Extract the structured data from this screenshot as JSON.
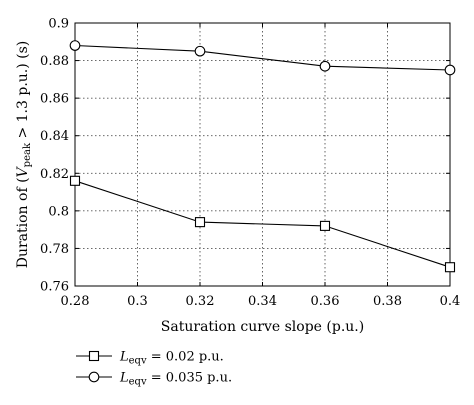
{
  "chart_data": {
    "type": "line",
    "title": "",
    "xlabel": "Saturation curve slope (p.u.)",
    "ylabel": {
      "prefix": "Duration of (",
      "var": "V",
      "sub": "peak",
      "suffix": " > 1.3 p.u.)  (s)"
    },
    "xlim": [
      0.28,
      0.4
    ],
    "ylim": [
      0.76,
      0.9
    ],
    "xticks": [
      0.28,
      0.3,
      0.32,
      0.34,
      0.36,
      0.38,
      0.4
    ],
    "xtick_labels": [
      "0.28",
      "0.3",
      "0.32",
      "0.34",
      "0.36",
      "0.38",
      "0.4"
    ],
    "yticks": [
      0.76,
      0.78,
      0.8,
      0.82,
      0.84,
      0.86,
      0.88,
      0.9
    ],
    "ytick_labels": [
      "0.76",
      "0.78",
      "0.8",
      "0.82",
      "0.84",
      "0.86",
      "0.88",
      "0.9"
    ],
    "grid": true,
    "legend_position": "below-left",
    "series": [
      {
        "name": "L_eqv = 0.02 p.u.",
        "legend": {
          "var": "L",
          "sub": "eqv",
          "suffix": " = 0.02 p.u."
        },
        "marker": "square",
        "x": [
          0.28,
          0.32,
          0.36,
          0.4
        ],
        "y": [
          0.816,
          0.794,
          0.792,
          0.77
        ]
      },
      {
        "name": "L_eqv = 0.035 p.u.",
        "legend": {
          "var": "L",
          "sub": "eqv",
          "suffix": " = 0.035 p.u."
        },
        "marker": "circle",
        "x": [
          0.28,
          0.32,
          0.36,
          0.4
        ],
        "y": [
          0.888,
          0.885,
          0.877,
          0.875
        ]
      }
    ],
    "colors": {
      "line": "#000000",
      "marker_fill": "#ffffff",
      "grid": "#555555"
    }
  }
}
